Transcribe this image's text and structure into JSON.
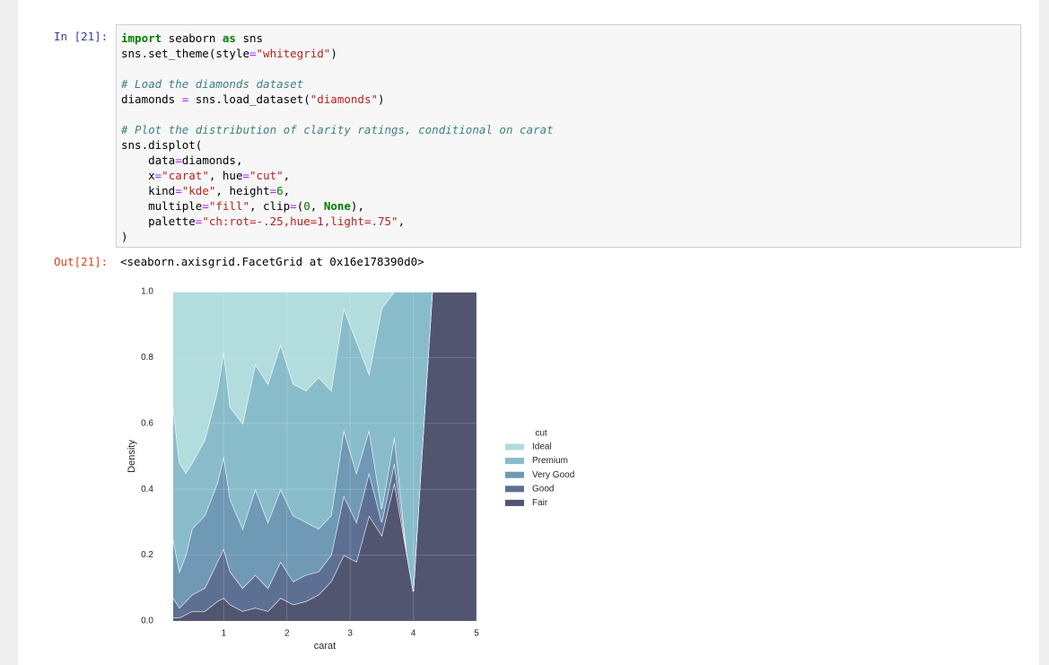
{
  "notebook": {
    "input_prompt": "In [21]:",
    "code": [
      [
        "import seaborn as sns",
        "sns.set_theme(style=\"whitegrid\")"
      ],
      [
        "# Load the diamonds dataset",
        "diamonds = sns.load_dataset(\"diamonds\")"
      ],
      [
        "# Plot the distribution of clarity ratings, conditional on carat",
        "sns.displot(",
        "    data=diamonds,",
        "    x=\"carat\", hue=\"cut\",",
        "    kind=\"kde\", height=6,",
        "    multiple=\"fill\", clip=(0, None),",
        "    palette=\"ch:rot=-.25,hue=1,light=.75\",",
        ")"
      ]
    ],
    "output_prompt": "Out[21]:",
    "output": "<seaborn.axisgrid.FacetGrid at 0x16e178390d0>"
  },
  "chart_data": {
    "type": "area",
    "stacked": "fill",
    "x": [
      0.2,
      0.3,
      0.4,
      0.5,
      0.7,
      0.9,
      1.0,
      1.1,
      1.3,
      1.5,
      1.7,
      1.9,
      2.1,
      2.3,
      2.5,
      2.7,
      2.9,
      3.1,
      3.3,
      3.5,
      3.7,
      3.9,
      4.0,
      4.1,
      4.3,
      5.0
    ],
    "series": [
      {
        "name": "Ideal",
        "color": "#b2dcdd",
        "values": [
          0.35,
          0.52,
          0.55,
          0.52,
          0.45,
          0.3,
          0.18,
          0.35,
          0.4,
          0.22,
          0.28,
          0.16,
          0.28,
          0.3,
          0.26,
          0.3,
          0.05,
          0.15,
          0.25,
          0.05,
          0,
          0,
          0,
          0,
          0,
          0
        ]
      },
      {
        "name": "Premium",
        "color": "#89bccb",
        "values": [
          0.4,
          0.33,
          0.25,
          0.2,
          0.23,
          0.28,
          0.32,
          0.28,
          0.32,
          0.38,
          0.42,
          0.44,
          0.4,
          0.4,
          0.46,
          0.38,
          0.37,
          0.4,
          0.17,
          0.61,
          0.44,
          0.8,
          0.91,
          0.6,
          0,
          0
        ]
      },
      {
        "name": "Very Good",
        "color": "#6f99b4",
        "values": [
          0.18,
          0.11,
          0.14,
          0.2,
          0.22,
          0.24,
          0.28,
          0.22,
          0.18,
          0.26,
          0.2,
          0.22,
          0.2,
          0.16,
          0.13,
          0.12,
          0.2,
          0.15,
          0.13,
          0.04,
          0.08,
          0,
          0,
          0,
          0,
          0
        ]
      },
      {
        "name": "Good",
        "color": "#5d7094",
        "values": [
          0.06,
          0.03,
          0.04,
          0.05,
          0.07,
          0.12,
          0.15,
          0.1,
          0.07,
          0.1,
          0.07,
          0.11,
          0.07,
          0.08,
          0.07,
          0.08,
          0.18,
          0.12,
          0.13,
          0.04,
          0.06,
          0,
          0,
          0,
          0,
          0
        ]
      },
      {
        "name": "Fair",
        "color": "#525570",
        "values": [
          0.01,
          0.01,
          0.02,
          0.03,
          0.03,
          0.06,
          0.07,
          0.05,
          0.03,
          0.04,
          0.03,
          0.07,
          0.05,
          0.06,
          0.08,
          0.12,
          0.2,
          0.18,
          0.32,
          0.26,
          0.42,
          0.2,
          0.09,
          0.4,
          1,
          1
        ]
      }
    ],
    "xlim": [
      0.03,
      5.17
    ],
    "ylim": [
      0,
      1
    ],
    "xticks": [
      1,
      2,
      3,
      4,
      5
    ],
    "yticks": [
      {
        "value": 0,
        "label": "0.0"
      },
      0.2,
      0.4,
      0.6,
      0.8,
      {
        "value": 1,
        "label": "1.0"
      }
    ],
    "xlabel": "carat",
    "ylabel": "Density",
    "legend_title": "cut",
    "grid": true
  }
}
